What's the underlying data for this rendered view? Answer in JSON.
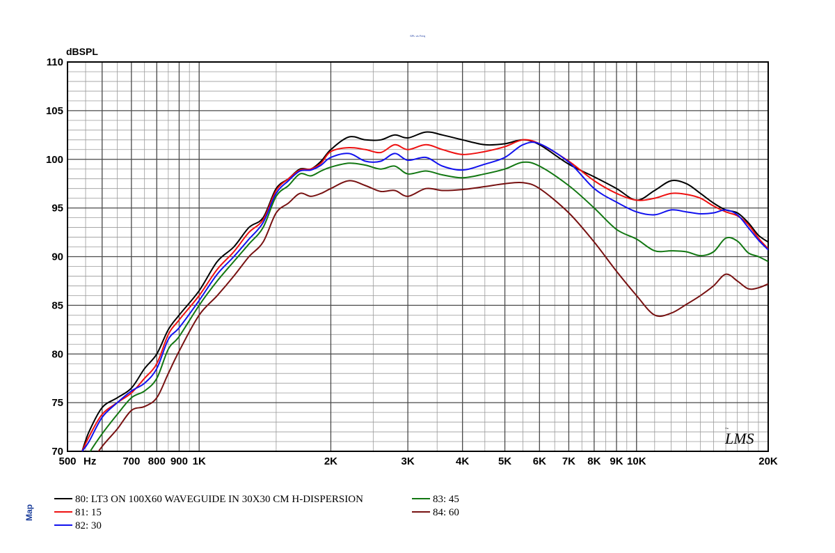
{
  "chart_data": {
    "type": "line",
    "title": "SPL vs Freq",
    "ylabel": "dBSPL",
    "xlabel": "Hz",
    "x_scale": "log",
    "xlim": [
      500,
      20000
    ],
    "ylim": [
      70,
      110
    ],
    "grid": true,
    "legend_position": "bottom-left",
    "y_ticks": [
      "70",
      "75",
      "80",
      "85",
      "90",
      "95",
      "100",
      "105",
      "110"
    ],
    "x_ticks": [
      {
        "f": 500,
        "label": "500"
      },
      {
        "f": 700,
        "label": "700"
      },
      {
        "f": 800,
        "label": "800"
      },
      {
        "f": 900,
        "label": "900"
      },
      {
        "f": 1000,
        "label": "1K"
      },
      {
        "f": 2000,
        "label": "2K"
      },
      {
        "f": 3000,
        "label": "3K"
      },
      {
        "f": 4000,
        "label": "4K"
      },
      {
        "f": 5000,
        "label": "5K"
      },
      {
        "f": 6000,
        "label": "6K"
      },
      {
        "f": 7000,
        "label": "7K"
      },
      {
        "f": 8000,
        "label": "8K"
      },
      {
        "f": 9000,
        "label": "9K"
      },
      {
        "f": 10000,
        "label": "10K"
      },
      {
        "f": 20000,
        "label": "20K"
      }
    ],
    "series": [
      {
        "name": "80: LT3 ON 100X60 WAVEGUIDE IN 30X30 CM H-DISPERSION",
        "color": "#000000",
        "points": [
          [
            540,
            70
          ],
          [
            560,
            72
          ],
          [
            600,
            74.5
          ],
          [
            650,
            75.5
          ],
          [
            700,
            76.5
          ],
          [
            750,
            78.5
          ],
          [
            800,
            80
          ],
          [
            850,
            82.5
          ],
          [
            900,
            84
          ],
          [
            1000,
            86.5
          ],
          [
            1100,
            89.5
          ],
          [
            1200,
            91
          ],
          [
            1300,
            93
          ],
          [
            1400,
            94
          ],
          [
            1500,
            97
          ],
          [
            1600,
            98
          ],
          [
            1700,
            99
          ],
          [
            1800,
            99
          ],
          [
            1900,
            99.8
          ],
          [
            2000,
            101
          ],
          [
            2200,
            102.3
          ],
          [
            2400,
            102
          ],
          [
            2600,
            102
          ],
          [
            2800,
            102.5
          ],
          [
            3000,
            102.2
          ],
          [
            3300,
            102.8
          ],
          [
            3600,
            102.5
          ],
          [
            4000,
            102
          ],
          [
            4500,
            101.5
          ],
          [
            5000,
            101.6
          ],
          [
            5500,
            102
          ],
          [
            6000,
            101.5
          ],
          [
            7000,
            99.5
          ],
          [
            8000,
            98.2
          ],
          [
            9000,
            97
          ],
          [
            10000,
            95.8
          ],
          [
            11000,
            96.8
          ],
          [
            12000,
            97.8
          ],
          [
            13000,
            97.5
          ],
          [
            14000,
            96.5
          ],
          [
            15000,
            95.5
          ],
          [
            16000,
            94.8
          ],
          [
            17000,
            94.5
          ],
          [
            18000,
            93.5
          ],
          [
            19000,
            92.2
          ],
          [
            20000,
            91.5
          ]
        ]
      },
      {
        "name": "81: 15",
        "color": "#ee1111",
        "points": [
          [
            540,
            70
          ],
          [
            560,
            71.5
          ],
          [
            600,
            73.8
          ],
          [
            650,
            75
          ],
          [
            700,
            76
          ],
          [
            750,
            77.5
          ],
          [
            800,
            79
          ],
          [
            850,
            82
          ],
          [
            900,
            83.5
          ],
          [
            1000,
            86
          ],
          [
            1100,
            88.7
          ],
          [
            1200,
            90.5
          ],
          [
            1300,
            92.5
          ],
          [
            1400,
            93.8
          ],
          [
            1500,
            96.8
          ],
          [
            1600,
            98
          ],
          [
            1700,
            98.9
          ],
          [
            1800,
            99
          ],
          [
            1900,
            99.6
          ],
          [
            2000,
            100.8
          ],
          [
            2200,
            101.2
          ],
          [
            2400,
            101
          ],
          [
            2600,
            100.7
          ],
          [
            2800,
            101.5
          ],
          [
            3000,
            101
          ],
          [
            3300,
            101.5
          ],
          [
            3600,
            101
          ],
          [
            4000,
            100.5
          ],
          [
            4500,
            100.8
          ],
          [
            5000,
            101.3
          ],
          [
            5500,
            102
          ],
          [
            6000,
            101.6
          ],
          [
            7000,
            99.8
          ],
          [
            8000,
            97.8
          ],
          [
            9000,
            96.5
          ],
          [
            10000,
            95.8
          ],
          [
            11000,
            96
          ],
          [
            12000,
            96.5
          ],
          [
            13000,
            96.4
          ],
          [
            14000,
            96
          ],
          [
            15000,
            95.2
          ],
          [
            16000,
            94.6
          ],
          [
            17000,
            94.2
          ],
          [
            18000,
            93.3
          ],
          [
            19000,
            91.9
          ],
          [
            20000,
            90.8
          ]
        ]
      },
      {
        "name": "82: 30",
        "color": "#1111ee",
        "points": [
          [
            540,
            70
          ],
          [
            560,
            71
          ],
          [
            600,
            73.5
          ],
          [
            650,
            75
          ],
          [
            700,
            76.2
          ],
          [
            750,
            77
          ],
          [
            800,
            78.5
          ],
          [
            850,
            81.5
          ],
          [
            900,
            82.7
          ],
          [
            1000,
            85.5
          ],
          [
            1100,
            88.2
          ],
          [
            1200,
            90
          ],
          [
            1300,
            91.8
          ],
          [
            1400,
            93.5
          ],
          [
            1500,
            96.5
          ],
          [
            1600,
            97.8
          ],
          [
            1700,
            98.8
          ],
          [
            1800,
            98.9
          ],
          [
            1900,
            99.4
          ],
          [
            2000,
            100.2
          ],
          [
            2200,
            100.6
          ],
          [
            2400,
            99.8
          ],
          [
            2600,
            99.8
          ],
          [
            2800,
            100.6
          ],
          [
            3000,
            99.9
          ],
          [
            3300,
            100.2
          ],
          [
            3600,
            99.3
          ],
          [
            4000,
            98.9
          ],
          [
            4500,
            99.5
          ],
          [
            5000,
            100.2
          ],
          [
            5500,
            101.5
          ],
          [
            6000,
            101.6
          ],
          [
            7000,
            99.7
          ],
          [
            8000,
            97
          ],
          [
            9000,
            95.6
          ],
          [
            10000,
            94.6
          ],
          [
            11000,
            94.3
          ],
          [
            12000,
            94.8
          ],
          [
            13000,
            94.6
          ],
          [
            14000,
            94.4
          ],
          [
            15000,
            94.5
          ],
          [
            16000,
            94.8
          ],
          [
            17000,
            94.3
          ],
          [
            18000,
            93
          ],
          [
            19000,
            91.7
          ],
          [
            20000,
            90.7
          ]
        ]
      },
      {
        "name": "83: 45",
        "color": "#127712",
        "points": [
          [
            540,
            68.5
          ],
          [
            560,
            69.8
          ],
          [
            600,
            71.8
          ],
          [
            650,
            73.8
          ],
          [
            700,
            75.5
          ],
          [
            750,
            76.2
          ],
          [
            800,
            77.5
          ],
          [
            850,
            80.5
          ],
          [
            900,
            81.8
          ],
          [
            1000,
            85
          ],
          [
            1100,
            87.5
          ],
          [
            1200,
            89.5
          ],
          [
            1300,
            91.3
          ],
          [
            1400,
            93
          ],
          [
            1500,
            96.2
          ],
          [
            1600,
            97.3
          ],
          [
            1700,
            98.5
          ],
          [
            1800,
            98.3
          ],
          [
            1900,
            98.8
          ],
          [
            2000,
            99.2
          ],
          [
            2200,
            99.6
          ],
          [
            2400,
            99.4
          ],
          [
            2600,
            99
          ],
          [
            2800,
            99.3
          ],
          [
            3000,
            98.5
          ],
          [
            3300,
            98.8
          ],
          [
            3600,
            98.4
          ],
          [
            4000,
            98.1
          ],
          [
            4500,
            98.5
          ],
          [
            5000,
            99
          ],
          [
            5500,
            99.7
          ],
          [
            6000,
            99.3
          ],
          [
            7000,
            97.3
          ],
          [
            8000,
            95
          ],
          [
            9000,
            92.8
          ],
          [
            10000,
            91.8
          ],
          [
            11000,
            90.6
          ],
          [
            12000,
            90.6
          ],
          [
            13000,
            90.5
          ],
          [
            14000,
            90.1
          ],
          [
            15000,
            90.5
          ],
          [
            16000,
            91.9
          ],
          [
            17000,
            91.6
          ],
          [
            18000,
            90.4
          ],
          [
            19000,
            90
          ],
          [
            20000,
            89.5
          ]
        ]
      },
      {
        "name": "84: 60",
        "color": "#771111",
        "points": [
          [
            540,
            67
          ],
          [
            560,
            68.5
          ],
          [
            600,
            70.5
          ],
          [
            650,
            72.3
          ],
          [
            700,
            74.2
          ],
          [
            750,
            74.6
          ],
          [
            800,
            75.5
          ],
          [
            850,
            78
          ],
          [
            900,
            80.3
          ],
          [
            1000,
            84
          ],
          [
            1100,
            86
          ],
          [
            1200,
            88
          ],
          [
            1300,
            90
          ],
          [
            1400,
            91.5
          ],
          [
            1500,
            94.5
          ],
          [
            1600,
            95.5
          ],
          [
            1700,
            96.5
          ],
          [
            1800,
            96.2
          ],
          [
            1900,
            96.5
          ],
          [
            2000,
            97
          ],
          [
            2200,
            97.8
          ],
          [
            2400,
            97.3
          ],
          [
            2600,
            96.7
          ],
          [
            2800,
            96.8
          ],
          [
            3000,
            96.2
          ],
          [
            3300,
            97
          ],
          [
            3600,
            96.8
          ],
          [
            4000,
            96.9
          ],
          [
            4500,
            97.2
          ],
          [
            5000,
            97.5
          ],
          [
            5500,
            97.6
          ],
          [
            6000,
            97
          ],
          [
            7000,
            94.5
          ],
          [
            8000,
            91.5
          ],
          [
            9000,
            88.5
          ],
          [
            10000,
            86
          ],
          [
            11000,
            84
          ],
          [
            12000,
            84.2
          ],
          [
            13000,
            85.1
          ],
          [
            14000,
            86
          ],
          [
            15000,
            87
          ],
          [
            16000,
            88.2
          ],
          [
            17000,
            87.5
          ],
          [
            18000,
            86.7
          ],
          [
            19000,
            86.8
          ],
          [
            20000,
            87.2
          ]
        ]
      }
    ]
  },
  "header": {
    "small_title": "SPL vs Freq"
  },
  "side": {
    "label": "Map"
  },
  "x_unit_label": "Hz",
  "logo": {
    "text": "LMS",
    "small": "The"
  }
}
